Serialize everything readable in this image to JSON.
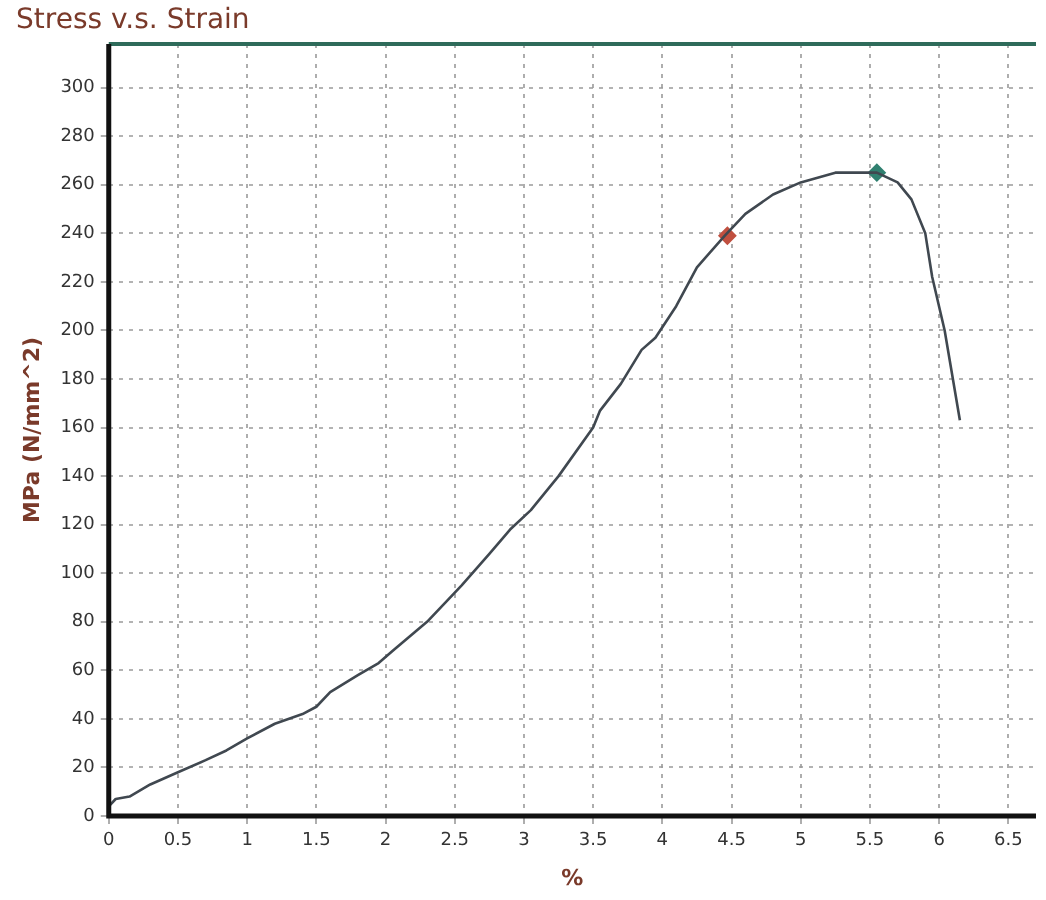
{
  "chart_data": {
    "type": "line",
    "title": "Stress v.s. Strain",
    "xlabel": "%",
    "ylabel": "MPa (N/mm^2)",
    "xlim": [
      0,
      6.7
    ],
    "xticks": [
      0,
      0.5,
      1,
      1.5,
      2,
      2.5,
      3,
      3.5,
      4,
      4.5,
      5,
      5.5,
      6,
      6.5
    ],
    "ylim": [
      0,
      318
    ],
    "yticks": [
      0,
      20,
      40,
      60,
      80,
      100,
      120,
      140,
      160,
      180,
      200,
      220,
      240,
      260,
      280,
      300
    ],
    "grid": true,
    "legend": false,
    "line_style": "solid",
    "series": [
      {
        "type": "line",
        "color": "#404850",
        "marker": "none",
        "x": [
          0,
          0.05,
          0.15,
          0.3,
          0.5,
          0.7,
          0.85,
          1,
          1.2,
          1.4,
          1.5,
          1.6,
          1.8,
          1.95,
          2.05,
          2.3,
          2.55,
          2.75,
          2.9,
          3.05,
          3.25,
          3.5,
          3.55,
          3.7,
          3.85,
          3.95,
          4.1,
          4.25,
          4.45,
          4.6,
          4.8,
          5.0,
          5.25,
          5.55,
          5.7,
          5.8,
          5.9,
          5.95,
          6.04,
          6.15
        ],
        "values": [
          4,
          7,
          8,
          13,
          18,
          23,
          27,
          32,
          38,
          42,
          45,
          51,
          58,
          63,
          68,
          80,
          95,
          108,
          118,
          126,
          140,
          160,
          167,
          178,
          192,
          197,
          210,
          226,
          239,
          248,
          256,
          261,
          265,
          265,
          261,
          254,
          240,
          222,
          200,
          163
        ]
      },
      {
        "type": "scatter",
        "marker": "diamond",
        "colors": [
          "#c05040",
          "#308070"
        ],
        "x": [
          4.47,
          5.55
        ],
        "values": [
          239,
          265
        ]
      }
    ]
  }
}
